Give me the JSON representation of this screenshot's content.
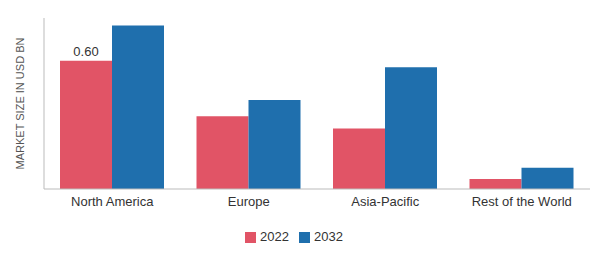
{
  "chart_data": {
    "type": "bar",
    "y_label": "MARKET SIZE IN USD BN",
    "categories": [
      "North America",
      "Europe",
      "Asia-Pacific",
      "Rest of the World"
    ],
    "series": [
      {
        "name": "2022",
        "color": "#e15466",
        "values": [
          0.6,
          0.34,
          0.283,
          0.047
        ],
        "value_labels": [
          "0.60",
          null,
          null,
          null
        ]
      },
      {
        "name": "2032",
        "color": "#1f6fad",
        "values": [
          0.765,
          0.416,
          0.57,
          0.1
        ]
      }
    ],
    "ylim": [
      0,
      0.8
    ],
    "tick_labels": "x",
    "grid": false
  }
}
